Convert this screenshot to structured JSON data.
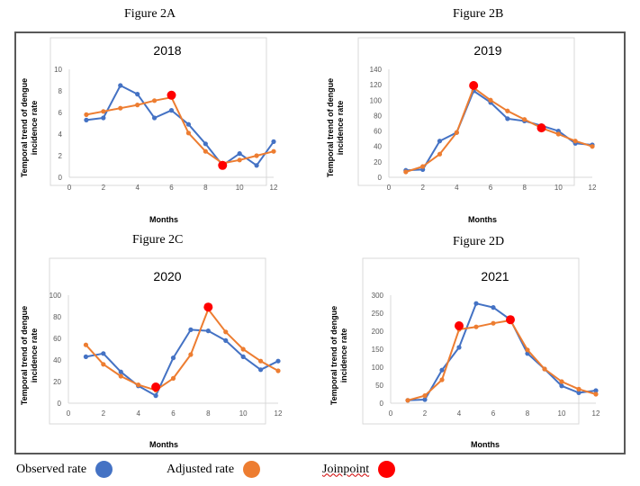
{
  "figure_labels": [
    "Figure 2A",
    "Figure 2B",
    "Figure 2C",
    "Figure 2D"
  ],
  "legend": {
    "observed": {
      "label": "Observed rate",
      "color": "#4472C4"
    },
    "adjusted": {
      "label": "Adjusted rate",
      "color": "#ED7D31"
    },
    "joinpoint": {
      "label": "Joinpoint",
      "color": "#FF0000"
    }
  },
  "chart_data": [
    {
      "type": "line",
      "title": "2018",
      "xlabel": "Months",
      "ylabel": "Temporal trend of dengue incidence rate",
      "xlim": [
        0,
        12
      ],
      "xticks": [
        0,
        2,
        4,
        6,
        8,
        10,
        12
      ],
      "ylim": [
        0,
        10
      ],
      "yticks": [
        0,
        2,
        4,
        6,
        8,
        10
      ],
      "grid": false,
      "x": [
        1,
        2,
        3,
        4,
        5,
        6,
        7,
        8,
        9,
        10,
        11,
        12
      ],
      "series": [
        {
          "name": "Observed rate",
          "values": [
            5.3,
            5.5,
            8.5,
            7.7,
            5.5,
            6.2,
            4.9,
            3.1,
            1.1,
            2.2,
            1.1,
            3.3
          ]
        },
        {
          "name": "Adjusted rate",
          "values": [
            5.8,
            6.1,
            6.4,
            6.7,
            7.1,
            7.4,
            4.1,
            2.4,
            1.3,
            1.6,
            2.0,
            2.4
          ]
        }
      ],
      "joinpoints": [
        {
          "x": 6,
          "y": 7.6
        },
        {
          "x": 9,
          "y": 1.1
        }
      ]
    },
    {
      "type": "line",
      "title": "2019",
      "xlabel": "Months",
      "ylabel": "Temporal trend of dengue incidence rate",
      "xlim": [
        0,
        12
      ],
      "xticks": [
        0,
        2,
        4,
        6,
        8,
        10,
        12
      ],
      "ylim": [
        0,
        140
      ],
      "yticks": [
        0,
        20,
        40,
        60,
        80,
        100,
        120,
        140
      ],
      "grid": false,
      "x": [
        1,
        2,
        3,
        4,
        5,
        6,
        7,
        8,
        9,
        10,
        11,
        12
      ],
      "series": [
        {
          "name": "Observed rate",
          "values": [
            9,
            10,
            47,
            58,
            112,
            97,
            76,
            73,
            67,
            60,
            44,
            42
          ]
        },
        {
          "name": "Adjusted rate",
          "values": [
            7,
            14,
            30,
            58,
            116,
            100,
            86,
            75,
            64,
            56,
            47,
            40
          ]
        }
      ],
      "joinpoints": [
        {
          "x": 5,
          "y": 119
        },
        {
          "x": 9,
          "y": 64
        }
      ]
    },
    {
      "type": "line",
      "title": "2020",
      "xlabel": "Months",
      "ylabel": "Temporal trend of dengue incidence rate",
      "xlim": [
        0,
        12
      ],
      "xticks": [
        0,
        2,
        4,
        6,
        8,
        10,
        12
      ],
      "ylim": [
        0,
        100
      ],
      "yticks": [
        0,
        20,
        40,
        60,
        80,
        100
      ],
      "grid": false,
      "x": [
        1,
        2,
        3,
        4,
        5,
        6,
        7,
        8,
        9,
        10,
        11,
        12
      ],
      "series": [
        {
          "name": "Observed rate",
          "values": [
            43,
            46,
            29,
            16,
            7,
            42,
            68,
            67,
            58,
            43,
            31,
            39
          ]
        },
        {
          "name": "Adjusted rate",
          "values": [
            54,
            36,
            25,
            17,
            12,
            23,
            45,
            87,
            66,
            50,
            39,
            30
          ]
        }
      ],
      "joinpoints": [
        {
          "x": 5,
          "y": 15
        },
        {
          "x": 8,
          "y": 89
        }
      ]
    },
    {
      "type": "line",
      "title": "2021",
      "xlabel": "Months",
      "ylabel": "Temporal trend of dengue incidence rate",
      "xlim": [
        0,
        12
      ],
      "xticks": [
        0,
        2,
        4,
        6,
        8,
        10,
        12
      ],
      "ylim": [
        0,
        300
      ],
      "yticks": [
        0,
        50,
        100,
        150,
        200,
        250,
        300
      ],
      "grid": false,
      "x": [
        1,
        2,
        3,
        4,
        5,
        6,
        7,
        8,
        9,
        10,
        11,
        12
      ],
      "series": [
        {
          "name": "Observed rate",
          "values": [
            8,
            10,
            92,
            155,
            277,
            266,
            232,
            138,
            95,
            48,
            29,
            35
          ]
        },
        {
          "name": "Adjusted rate",
          "values": [
            8,
            21,
            65,
            205,
            212,
            222,
            230,
            148,
            95,
            60,
            39,
            25
          ]
        }
      ],
      "joinpoints": [
        {
          "x": 4,
          "y": 215
        },
        {
          "x": 7,
          "y": 232
        }
      ]
    }
  ]
}
